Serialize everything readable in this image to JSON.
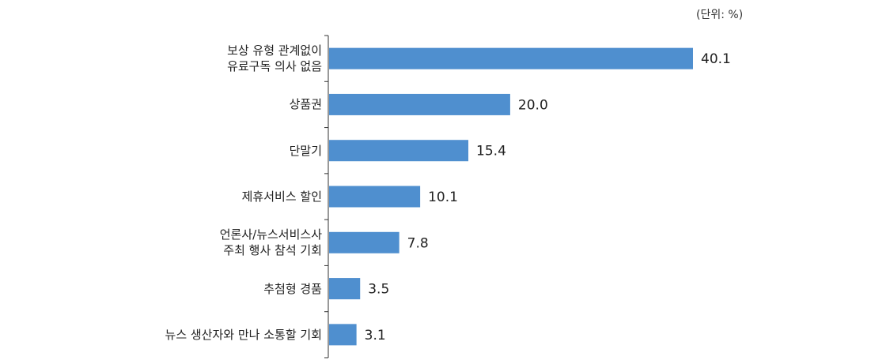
{
  "chart_data": {
    "type": "bar",
    "orientation": "horizontal",
    "unit_note": "(단위: %)",
    "categories": [
      "보상 유형 관계없이\n유료구독 의사 없음",
      "상품권",
      "단말기",
      "제휴서비스 할인",
      "언론사/뉴스서비스사\n주최 행사 참석 기회",
      "추첨형 경품",
      "뉴스 생산자와 만나 소통할 기회"
    ],
    "values": [
      40.1,
      20.0,
      15.4,
      10.1,
      7.8,
      3.5,
      3.1
    ],
    "value_labels": [
      "40.1",
      "20.0",
      "15.4",
      "10.1",
      "7.8",
      "3.5",
      "3.1"
    ],
    "color": "#4f8fcf"
  }
}
